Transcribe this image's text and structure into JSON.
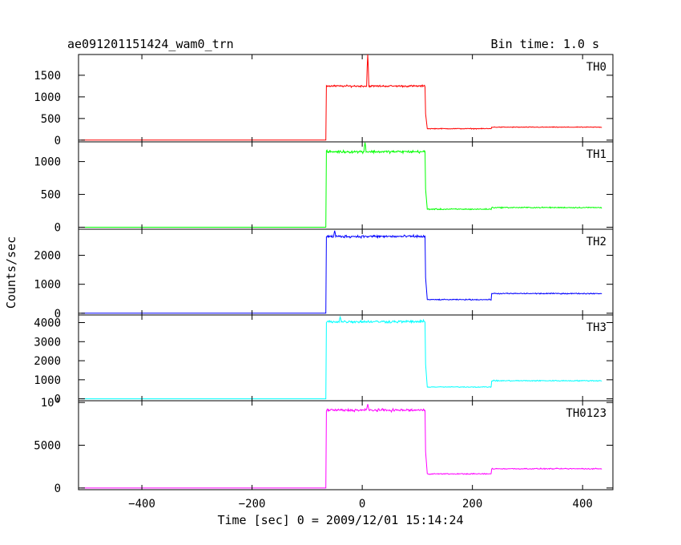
{
  "header": {
    "title": "ae091201151424_wam0_trn",
    "bin_time": "Bin time: 1.0 s"
  },
  "chart_data": {
    "type": "line",
    "title": "ae091201151424_wam0_trn",
    "xlabel": "Time [sec] 0 = 2009/12/01 15:14:24",
    "ylabel": "Counts/sec",
    "xlim": [
      -515,
      455
    ],
    "x_ticks": [
      -400,
      -200,
      0,
      200,
      400
    ],
    "x_tick_labels": [
      "−400",
      "−200",
      "0",
      "200",
      "400"
    ],
    "step_times": {
      "burst_start": -65,
      "burst_end": 115,
      "background_step": 235
    },
    "panels": [
      {
        "name": "TH0",
        "color": "#ff0000",
        "ylim": [
          -40,
          1980
        ],
        "y_ticks": [
          0,
          500,
          1000,
          1500
        ],
        "y_tick_labels": [
          "0",
          "500",
          "1000",
          "1500"
        ],
        "levels": {
          "pre": 0,
          "burst": 1250,
          "post": 265,
          "late": 300
        },
        "peak": {
          "x": 10,
          "y": 1980
        }
      },
      {
        "name": "TH1",
        "color": "#00ff00",
        "ylim": [
          -30,
          1300
        ],
        "y_ticks": [
          0,
          500,
          1000
        ],
        "y_tick_labels": [
          "0",
          "500",
          "1000"
        ],
        "levels": {
          "pre": 0,
          "burst": 1150,
          "post": 275,
          "late": 300
        },
        "peak": {
          "x": 5,
          "y": 1290
        }
      },
      {
        "name": "TH2",
        "color": "#0000ff",
        "ylim": [
          -60,
          2900
        ],
        "y_ticks": [
          0,
          1000,
          2000
        ],
        "y_tick_labels": [
          "0",
          "1000",
          "2000"
        ],
        "levels": {
          "pre": 0,
          "burst": 2650,
          "post": 470,
          "late": 680
        },
        "peak": {
          "x": -50,
          "y": 2850
        }
      },
      {
        "name": "TH3",
        "color": "#00ffff",
        "ylim": [
          -100,
          4400
        ],
        "y_ticks": [
          0,
          1000,
          2000,
          3000,
          4000
        ],
        "y_tick_labels": [
          "0",
          "1000",
          "2000",
          "3000",
          "4000"
        ],
        "levels": {
          "pre": 0,
          "burst": 4050,
          "post": 620,
          "late": 950
        },
        "peak": {
          "x": -40,
          "y": 4300
        }
      },
      {
        "name": "TH0123",
        "color": "#ff00ff",
        "ylim": [
          -200,
          10200
        ],
        "y_ticks": [
          0,
          5000,
          10000
        ],
        "y_tick_labels": [
          "0",
          "5000",
          "10⁴"
        ],
        "levels": {
          "pre": 0,
          "burst": 9100,
          "post": 1650,
          "late": 2250
        },
        "peak": {
          "x": 10,
          "y": 9800
        }
      }
    ]
  }
}
